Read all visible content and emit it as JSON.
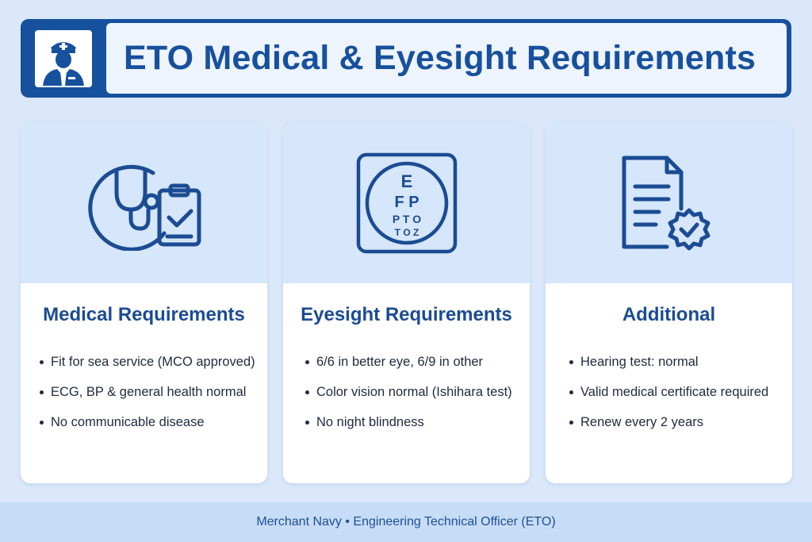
{
  "header": {
    "title": "ETO Medical & Eyesight Requirements",
    "icon": "officer-icon"
  },
  "cards": [
    {
      "icon": "stethoscope-clipboard-icon",
      "title": "Medical Requirements",
      "items": [
        "Fit for sea service (MCO approved)",
        "ECG, BP & general health normal",
        "No communicable disease"
      ]
    },
    {
      "icon": "eye-chart-icon",
      "title": "Eyesight Requirements",
      "chart_letters": [
        "E",
        "F P",
        "P T O",
        "T O Z"
      ],
      "items": [
        "6/6 in better eye, 6/9 in other",
        "Color vision normal (Ishihara test)",
        "No night blindness"
      ]
    },
    {
      "icon": "certificate-badge-icon",
      "title": "Additional",
      "items": [
        "Hearing test: normal",
        "Valid medical certificate required",
        "Renew every 2 years"
      ]
    }
  ],
  "footer": {
    "text": "Merchant Navy • Engineering Technical Officer (ETO)"
  },
  "colors": {
    "primary": "#16519e",
    "background": "#dbe8fb",
    "card_top": "#d6e6fb"
  }
}
